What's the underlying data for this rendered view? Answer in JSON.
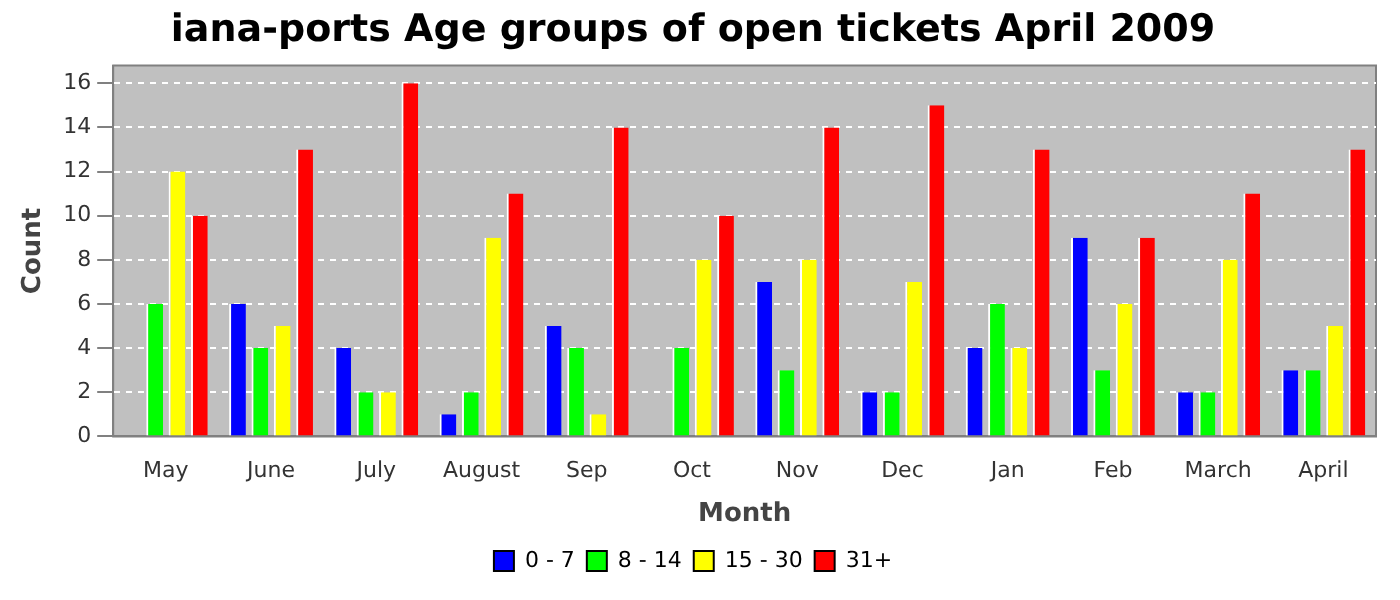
{
  "chart_data": {
    "type": "bar",
    "title": "iana-ports Age groups of open tickets April 2009",
    "xlabel": "Month",
    "ylabel": "Count",
    "categories": [
      "May",
      "June",
      "July",
      "August",
      "Sep",
      "Oct",
      "Nov",
      "Dec",
      "Jan",
      "Feb",
      "March",
      "April"
    ],
    "series": [
      {
        "name": "0 - 7",
        "color": "#0000ff",
        "values": [
          0,
          6,
          4,
          1,
          5,
          0,
          7,
          2,
          4,
          9,
          2,
          3
        ]
      },
      {
        "name": "8 - 14",
        "color": "#00ff00",
        "values": [
          6,
          4,
          2,
          2,
          4,
          4,
          3,
          2,
          6,
          3,
          2,
          3
        ]
      },
      {
        "name": "15 - 30",
        "color": "#ffff00",
        "values": [
          12,
          5,
          2,
          9,
          1,
          8,
          8,
          7,
          4,
          6,
          8,
          5
        ]
      },
      {
        "name": "31+",
        "color": "#ff0000",
        "values": [
          10,
          13,
          16,
          11,
          14,
          10,
          14,
          15,
          13,
          9,
          11,
          13
        ]
      }
    ],
    "ylim": [
      0,
      16.8
    ],
    "yticks": [
      0,
      2,
      4,
      6,
      8,
      10,
      12,
      14,
      16
    ],
    "grid": "y",
    "legend": "bottom"
  }
}
